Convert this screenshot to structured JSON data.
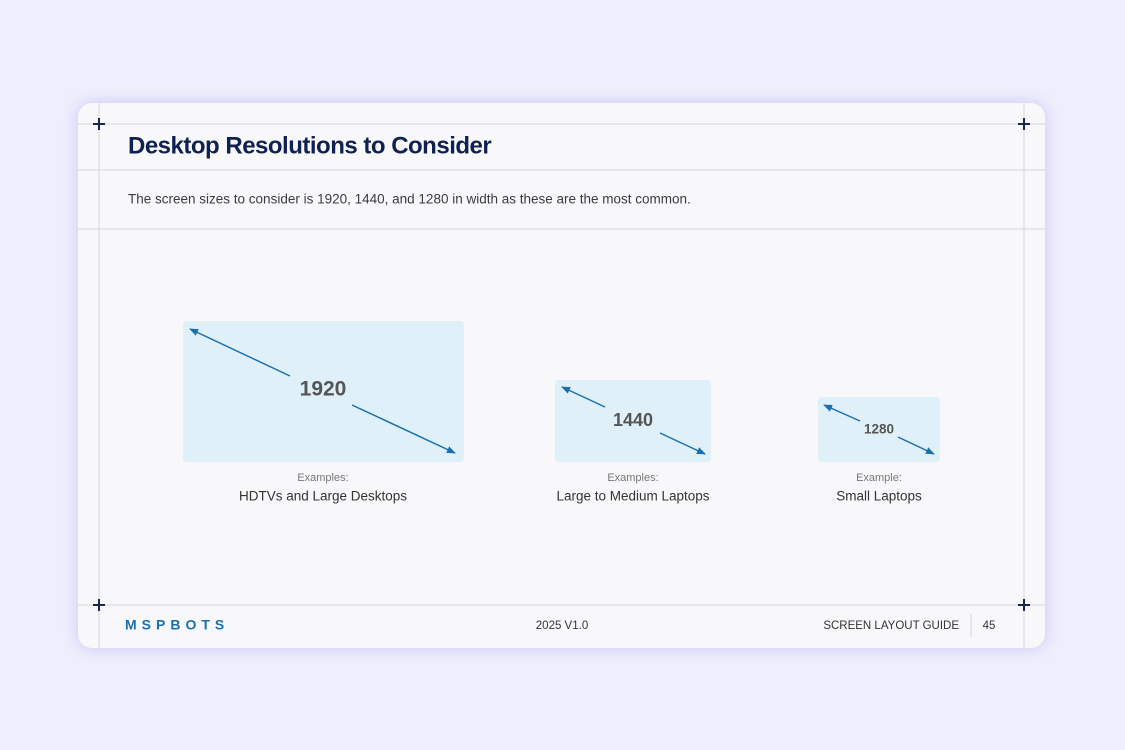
{
  "header": {
    "title": "Desktop Resolutions to Consider"
  },
  "description": "The screen sizes to consider is 1920, 1440, and 1280 in width as these are the most common.",
  "cards": [
    {
      "label": "1920",
      "examples_label": "Examples:",
      "examples": "HDTVs and Large Desktops"
    },
    {
      "label": "1440",
      "examples_label": "Examples:",
      "examples": "Large to Medium Laptops"
    },
    {
      "label": "1280",
      "examples_label": "Example:",
      "examples": "Small Laptops"
    }
  ],
  "footer": {
    "logo": "MSPBOTS",
    "version": "2025 V1.0",
    "guide": "SCREEN LAYOUT GUIDE",
    "page": "45"
  }
}
